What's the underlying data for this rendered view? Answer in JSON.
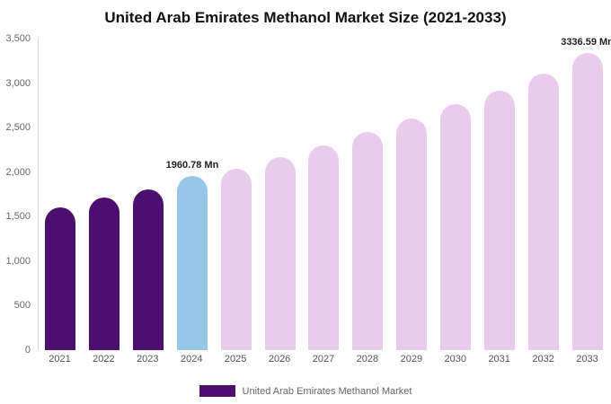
{
  "title": "United Arab Emirates Methanol Market Size (2021-2033)",
  "legend": {
    "label": "United Arab Emirates Methanol Market",
    "swatch_color": "#4B0F70"
  },
  "colors": {
    "historical": "#4B0F70",
    "current": "#96C7E6",
    "forecast": "#E9CBEB"
  },
  "chart_data": {
    "type": "bar",
    "title": "United Arab Emirates Methanol Market Size (2021-2033)",
    "categories": [
      "2021",
      "2022",
      "2023",
      "2024",
      "2025",
      "2026",
      "2027",
      "2028",
      "2029",
      "2030",
      "2031",
      "2032",
      "2033"
    ],
    "values": [
      1600,
      1710,
      1810,
      1960.78,
      2040,
      2170,
      2300,
      2450,
      2600,
      2760,
      2920,
      3110,
      3336.59
    ],
    "colors": [
      "#4B0F70",
      "#4B0F70",
      "#4B0F70",
      "#96C7E6",
      "#E9CBEB",
      "#E9CBEB",
      "#E9CBEB",
      "#E9CBEB",
      "#E9CBEB",
      "#E9CBEB",
      "#E9CBEB",
      "#E9CBEB",
      "#E9CBEB"
    ],
    "xlabel": "",
    "ylabel": "",
    "ylim": [
      0,
      3500
    ],
    "yticks": [
      0,
      500,
      1000,
      1500,
      2000,
      2500,
      3000,
      3500
    ],
    "ytick_labels": [
      "0",
      "500",
      "1,000",
      "1,500",
      "2,000",
      "2,500",
      "3,000",
      "3,500"
    ],
    "annotations": [
      {
        "category": "2024",
        "text": "1960.78 Mn"
      },
      {
        "category": "2033",
        "text": "3336.59 Mn"
      }
    ],
    "grid": false,
    "legend_position": "bottom",
    "legend_entries": [
      "United Arab Emirates Methanol Market"
    ]
  }
}
